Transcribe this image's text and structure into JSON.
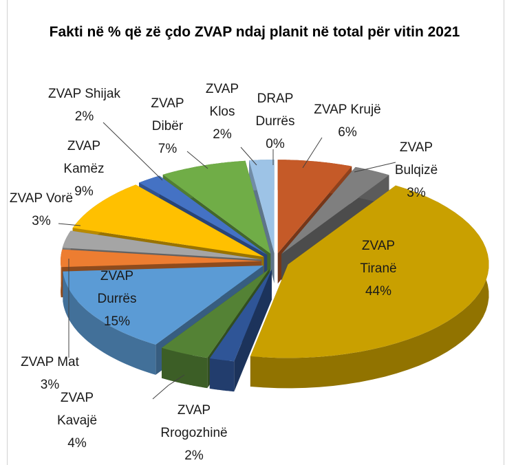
{
  "chart_data": {
    "type": "pie3d",
    "title": "Fakti në % që zë çdo ZVAP ndaj planit në total për vitin 2021",
    "categories": [
      "ZVAP Krujë",
      "ZVAP Bulqizë",
      "ZVAP Tiranë",
      "ZVAP Rrogozhinë",
      "ZVAP Kavajë",
      "ZVAP Durrës",
      "ZVAP Mat",
      "ZVAP Vorë",
      "ZVAP Kamëz",
      "ZVAP Shijak",
      "ZVAP Dibër",
      "ZVAP Klos",
      "DRAP Durrës"
    ],
    "values": [
      6,
      3,
      44,
      2,
      4,
      15,
      3,
      3,
      9,
      2,
      7,
      2,
      0
    ],
    "value_labels": [
      "6%",
      "3%",
      "44%",
      "2%",
      "4%",
      "15%",
      "3%",
      "3%",
      "9%",
      "2%",
      "7%",
      "2%",
      "0%"
    ],
    "colors": [
      "#c55a28",
      "#7f7f7f",
      "#c9a000",
      "#2f5597",
      "#548235",
      "#5b9bd5",
      "#ed7d31",
      "#a5a5a5",
      "#ffc000",
      "#4472c4",
      "#70ad47",
      "#9dc3e6",
      "#255e91"
    ]
  }
}
